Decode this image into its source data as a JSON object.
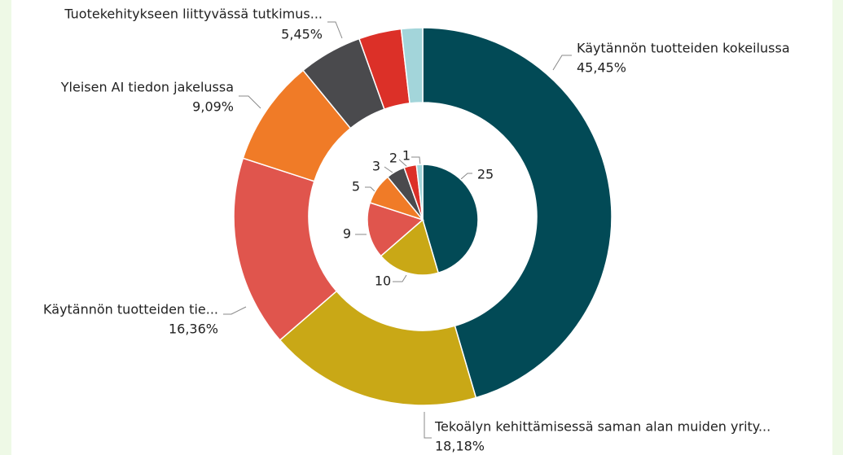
{
  "chart_data": [
    {
      "type": "donut",
      "categories": [
        "Käytännön tuotteiden kokeilussa",
        "Tekoälyn kehittämisessä saman alan muiden yrity...",
        "Käytännön tuotteiden tie...",
        "Yleisen AI tiedon jakelussa",
        "Tuotekehitykseen liittyvässä tutkimus...",
        null,
        null
      ],
      "values": [
        45.45,
        18.18,
        16.36,
        9.09,
        5.45,
        3.64,
        1.82
      ],
      "value_labels": [
        "45,45%",
        "18,18%",
        "16,36%",
        "9,09%",
        "5,45%",
        null,
        null
      ],
      "colors": [
        "#024a56",
        "#c9a816",
        "#e0554d",
        "#f07b27",
        "#4a4a4d",
        "#dc3028",
        "#a3d5da"
      ]
    },
    {
      "type": "pie",
      "values": [
        25,
        10,
        9,
        5,
        3,
        2,
        1
      ],
      "colors": [
        "#024a56",
        "#c9a816",
        "#e0554d",
        "#f07b27",
        "#4a4a4d",
        "#dc3028",
        "#a3d5da"
      ]
    }
  ]
}
